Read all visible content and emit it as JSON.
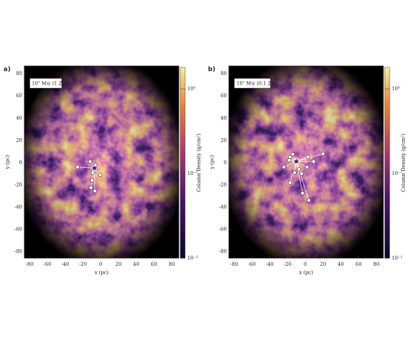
{
  "chart_data": [
    {
      "type": "scatter",
      "panel_label": "a)",
      "annotation": "10⁷ M⊙ (1 Z⊙)",
      "xlabel": "x (pc)",
      "ylabel": "y (pc)",
      "colorbar_label": "Column Density (g/cm²)",
      "xlim": [
        -86,
        88
      ],
      "ylim": [
        -86,
        87
      ],
      "xticks": [
        -80,
        -60,
        -40,
        -20,
        0,
        20,
        40,
        60,
        80
      ],
      "yticks": [
        -80,
        -60,
        -40,
        -20,
        0,
        20,
        40,
        60,
        80
      ],
      "center": {
        "x": -7,
        "y": -5
      },
      "x": [
        -26,
        -12,
        -6,
        -0.5,
        -9,
        -9.5,
        -11,
        -6.5
      ],
      "y": [
        -4,
        1,
        -2,
        -11,
        -9,
        -16,
        -22.5,
        -25.6
      ],
      "colorbar": {
        "log": true,
        "lim": [
          0.01,
          1.8
        ],
        "ticks": [
          {
            "value": 0.01,
            "label": "10⁻²"
          },
          {
            "value": 0.1,
            "label": "10⁻¹"
          },
          {
            "value": 1,
            "label": "10⁰"
          }
        ]
      }
    },
    {
      "type": "scatter",
      "panel_label": "b)",
      "annotation": "10⁷ M⊙ (0.1 Z⊙)",
      "xlabel": "x (pc)",
      "ylabel": "y (pc)",
      "colorbar_label": "Column Density (g/cm²)",
      "xlim": [
        -86,
        88
      ],
      "ylim": [
        -86,
        87
      ],
      "xticks": [
        -80,
        -60,
        -40,
        -20,
        0,
        20,
        40,
        60,
        80
      ],
      "yticks": [
        -80,
        -60,
        -40,
        -20,
        0,
        20,
        40,
        60,
        80
      ],
      "center": {
        "x": -10,
        "y": 1
      },
      "x": [
        -24,
        -17,
        -14,
        3,
        9.5,
        20,
        2,
        -7,
        -4,
        -12,
        -17,
        -3,
        4,
        -18
      ],
      "y": [
        -4,
        5,
        7.5,
        5,
        1,
        8,
        -4,
        -6,
        -10,
        -9,
        -18,
        -27.5,
        -34,
        2
      ],
      "colorbar": {
        "log": true,
        "lim": [
          0.01,
          1.8
        ],
        "ticks": [
          {
            "value": 0.01,
            "label": "10⁻²"
          },
          {
            "value": 0.1,
            "label": "10⁻¹"
          },
          {
            "value": 1,
            "label": "10⁰"
          }
        ]
      }
    }
  ]
}
